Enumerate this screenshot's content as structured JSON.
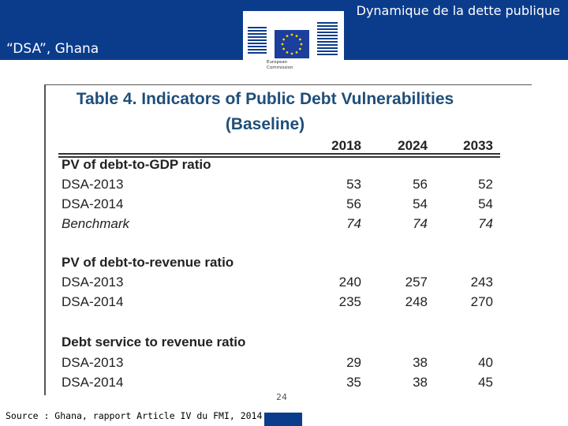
{
  "header": {
    "title": "Dynamique de la dette publique",
    "subtitle": "“DSA”, Ghana",
    "logo_text": "European\nCommission",
    "brand_color": "#0b3c8c"
  },
  "table": {
    "title_line1": "Table 4. Indicators of Public Debt Vulnerabilities",
    "title_line2": "(Baseline)",
    "years": [
      "2018",
      "2024",
      "2033"
    ],
    "sections": [
      {
        "heading": "PV of debt-to-GDP ratio",
        "rows": [
          {
            "label": "DSA-2013",
            "values": [
              "53",
              "56",
              "52"
            ]
          },
          {
            "label": "DSA-2014",
            "values": [
              "56",
              "54",
              "54"
            ]
          },
          {
            "label": "Benchmark",
            "values": [
              "74",
              "74",
              "74"
            ]
          }
        ]
      },
      {
        "heading": "PV of debt-to-revenue ratio",
        "rows": [
          {
            "label": "DSA-2013",
            "values": [
              "240",
              "257",
              "243"
            ]
          },
          {
            "label": "DSA-2014",
            "values": [
              "235",
              "248",
              "270"
            ]
          }
        ]
      },
      {
        "heading": "Debt service to revenue ratio",
        "rows": [
          {
            "label": "DSA-2013",
            "values": [
              "29",
              "38",
              "40"
            ]
          },
          {
            "label": "DSA-2014",
            "values": [
              "35",
              "38",
              "45"
            ]
          }
        ]
      }
    ]
  },
  "footer": {
    "page_number": "24",
    "source": "Source : Ghana, rapport Article IV du FMI, 2014"
  }
}
